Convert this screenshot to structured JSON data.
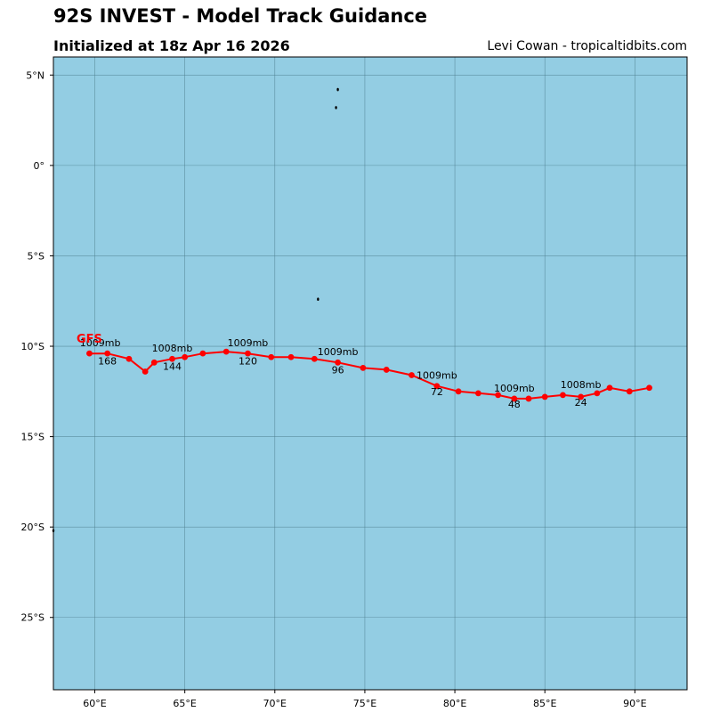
{
  "header": {
    "title": "92S INVEST - Model Track Guidance",
    "subtitle": "Initialized at 18z Apr 16 2026",
    "credit": "Levi Cowan - tropicaltidbits.com"
  },
  "colors": {
    "ocean": "#93cde3",
    "grid": "#4f7f90",
    "track": "#ff0000",
    "frame": "#000000"
  },
  "map": {
    "lon_range": [
      57.7,
      92.9
    ],
    "lat_range": [
      -29.0,
      6.0
    ],
    "lon_ticks": [
      {
        "value": 60,
        "label": "60°E"
      },
      {
        "value": 65,
        "label": "65°E"
      },
      {
        "value": 70,
        "label": "70°E"
      },
      {
        "value": 75,
        "label": "75°E"
      },
      {
        "value": 80,
        "label": "80°E"
      },
      {
        "value": 85,
        "label": "85°E"
      },
      {
        "value": 90,
        "label": "90°E"
      }
    ],
    "lat_ticks": [
      {
        "value": 5,
        "label": "5°N"
      },
      {
        "value": 0,
        "label": "0°"
      },
      {
        "value": -5,
        "label": "5°S"
      },
      {
        "value": -10,
        "label": "10°S"
      },
      {
        "value": -15,
        "label": "15°S"
      },
      {
        "value": -20,
        "label": "20°S"
      },
      {
        "value": -25,
        "label": "25°S"
      }
    ],
    "islands": [
      {
        "name": "island-north-1",
        "lon": 73.5,
        "lat": 4.2
      },
      {
        "name": "island-north-2",
        "lon": 73.4,
        "lat": 3.2
      },
      {
        "name": "island-chagos",
        "lon": 72.4,
        "lat": -7.4
      },
      {
        "name": "island-west-edge",
        "lon": 57.7,
        "lat": -20.2
      }
    ]
  },
  "chart_data": {
    "type": "map-track",
    "model": "GFS",
    "track": [
      {
        "lon": 90.8,
        "lat": -12.3
      },
      {
        "lon": 89.7,
        "lat": -12.5
      },
      {
        "lon": 88.6,
        "lat": -12.3
      },
      {
        "lon": 87.9,
        "lat": -12.6
      },
      {
        "lon": 87.0,
        "lat": -12.8
      },
      {
        "lon": 86.0,
        "lat": -12.7
      },
      {
        "lon": 85.0,
        "lat": -12.8
      },
      {
        "lon": 84.1,
        "lat": -12.9
      },
      {
        "lon": 83.3,
        "lat": -12.9
      },
      {
        "lon": 82.4,
        "lat": -12.7
      },
      {
        "lon": 81.3,
        "lat": -12.6
      },
      {
        "lon": 80.2,
        "lat": -12.5
      },
      {
        "lon": 79.0,
        "lat": -12.2
      },
      {
        "lon": 77.6,
        "lat": -11.6
      },
      {
        "lon": 76.2,
        "lat": -11.3
      },
      {
        "lon": 74.9,
        "lat": -11.2
      },
      {
        "lon": 73.5,
        "lat": -10.9
      },
      {
        "lon": 72.2,
        "lat": -10.7
      },
      {
        "lon": 70.9,
        "lat": -10.6
      },
      {
        "lon": 69.8,
        "lat": -10.6
      },
      {
        "lon": 68.5,
        "lat": -10.4
      },
      {
        "lon": 67.3,
        "lat": -10.3
      },
      {
        "lon": 66.0,
        "lat": -10.4
      },
      {
        "lon": 65.0,
        "lat": -10.6
      },
      {
        "lon": 64.3,
        "lat": -10.7
      },
      {
        "lon": 63.3,
        "lat": -10.9
      },
      {
        "lon": 62.8,
        "lat": -11.4
      },
      {
        "lon": 61.9,
        "lat": -10.7
      },
      {
        "lon": 60.7,
        "lat": -10.4
      },
      {
        "lon": 59.7,
        "lat": -10.4
      }
    ],
    "pressure_labels": [
      {
        "text": "1008mb",
        "lon": 87.0,
        "lat": -12.3
      },
      {
        "text": "1009mb",
        "lon": 83.3,
        "lat": -12.5
      },
      {
        "text": "1009mb",
        "lon": 79.0,
        "lat": -11.8
      },
      {
        "text": "1009mb",
        "lon": 73.5,
        "lat": -10.5
      },
      {
        "text": "1009mb",
        "lon": 68.5,
        "lat": -10.0
      },
      {
        "text": "1008mb",
        "lon": 64.3,
        "lat": -10.3
      },
      {
        "text": "1009mb",
        "lon": 60.3,
        "lat": -10.0
      }
    ],
    "hour_labels": [
      {
        "text": "24",
        "lon": 87.0,
        "lat": -13.3
      },
      {
        "text": "48",
        "lon": 83.3,
        "lat": -13.4
      },
      {
        "text": "72",
        "lon": 79.0,
        "lat": -12.7
      },
      {
        "text": "96",
        "lon": 73.5,
        "lat": -11.5
      },
      {
        "text": "120",
        "lon": 68.5,
        "lat": -11.0
      },
      {
        "text": "144",
        "lon": 64.3,
        "lat": -11.3
      },
      {
        "text": "168",
        "lon": 60.7,
        "lat": -11.0
      }
    ],
    "model_label": {
      "text": "GFS",
      "lon": 59.7,
      "lat": -9.8
    }
  }
}
